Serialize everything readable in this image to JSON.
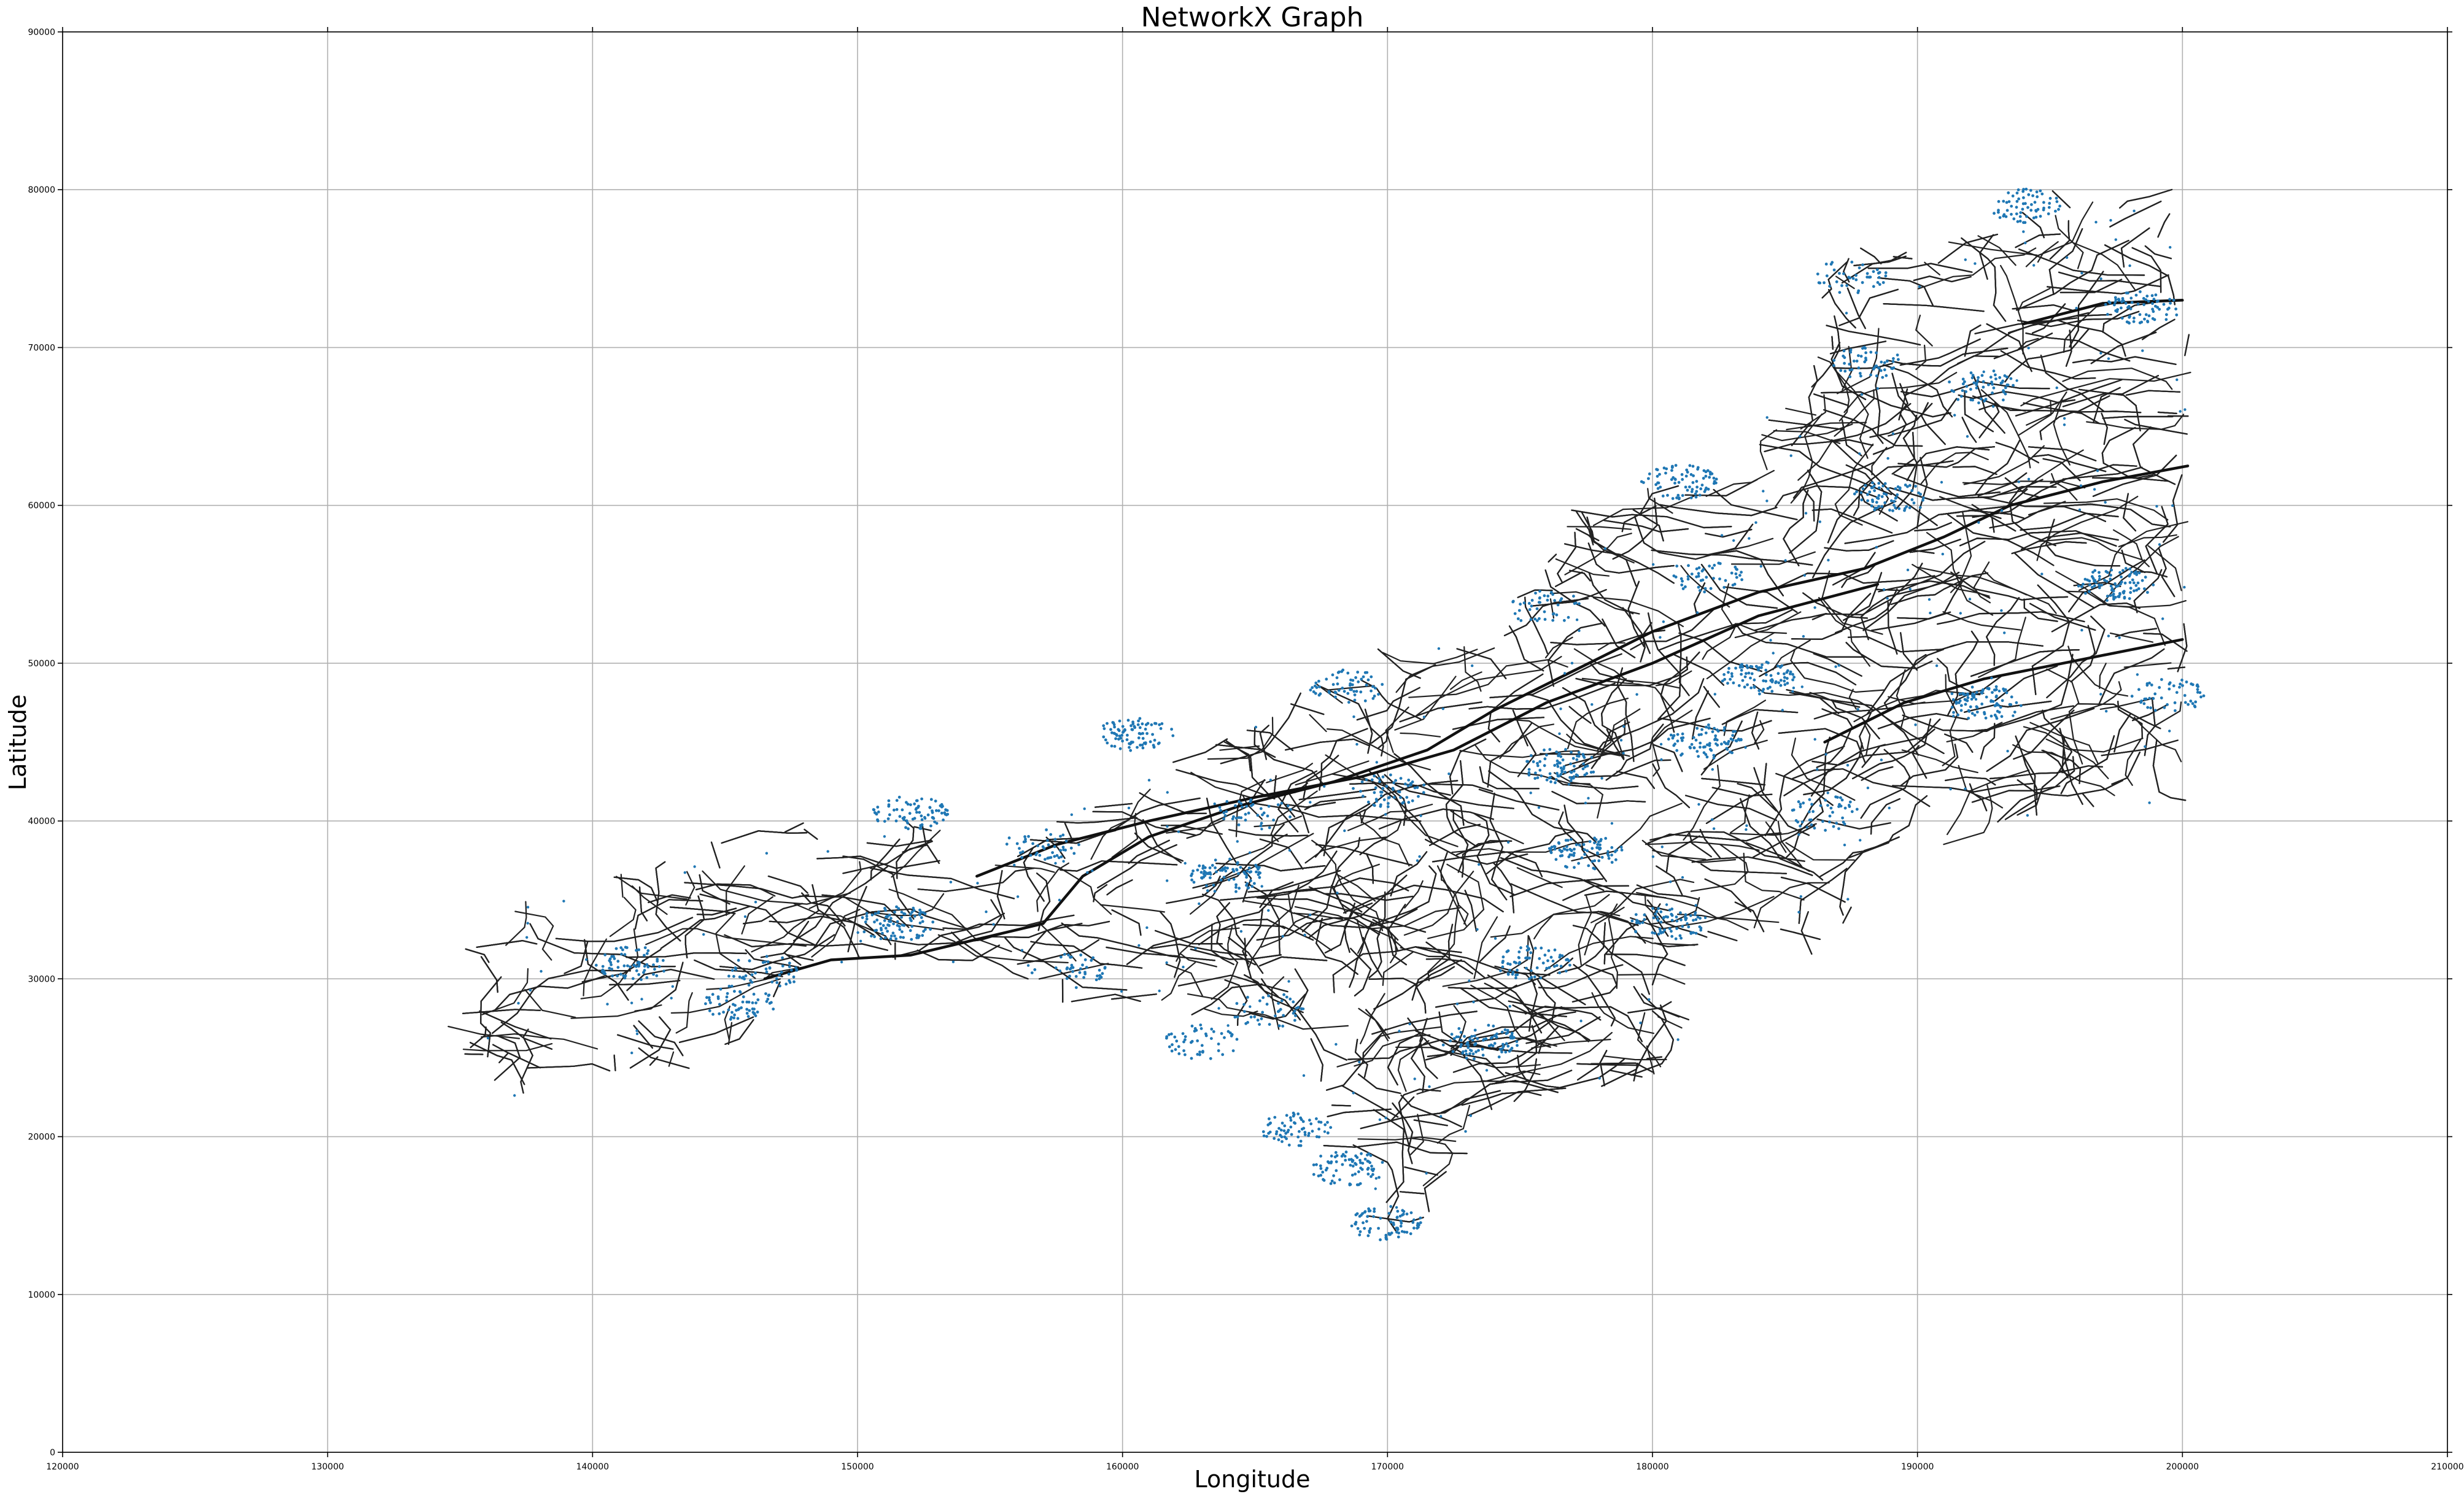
{
  "chart_data": {
    "type": "scatter",
    "title": "NetworkX Graph",
    "xlabel": "Longitude",
    "ylabel": "Latitude",
    "xlim": [
      120000,
      210000
    ],
    "ylim": [
      0,
      90000
    ],
    "xticks": [
      120000,
      130000,
      140000,
      150000,
      160000,
      170000,
      180000,
      190000,
      200000,
      210000
    ],
    "yticks": [
      0,
      10000,
      20000,
      30000,
      40000,
      50000,
      60000,
      70000,
      80000,
      90000
    ],
    "grid": true,
    "legend": "none",
    "edge_color": "#222222",
    "node_color": "#1f77b4",
    "outline": [
      [
        134500,
        25200
      ],
      [
        136000,
        24000
      ],
      [
        137500,
        21800
      ],
      [
        139000,
        23200
      ],
      [
        141000,
        23900
      ],
      [
        143500,
        24200
      ],
      [
        145500,
        25200
      ],
      [
        146500,
        27500
      ],
      [
        147500,
        30500
      ],
      [
        150000,
        31200
      ],
      [
        153000,
        31000
      ],
      [
        155500,
        30500
      ],
      [
        157500,
        28500
      ],
      [
        160000,
        28500
      ],
      [
        162000,
        27800
      ],
      [
        163500,
        26000
      ],
      [
        165000,
        27500
      ],
      [
        166500,
        26000
      ],
      [
        167000,
        22500
      ],
      [
        167500,
        18000
      ],
      [
        169000,
        14500
      ],
      [
        170000,
        12000
      ],
      [
        171500,
        14500
      ],
      [
        172500,
        17500
      ],
      [
        174000,
        21500
      ],
      [
        177000,
        22800
      ],
      [
        179500,
        22800
      ],
      [
        180500,
        24500
      ],
      [
        181500,
        27500
      ],
      [
        182500,
        32000
      ],
      [
        184500,
        33000
      ],
      [
        186000,
        31500
      ],
      [
        187500,
        34000
      ],
      [
        188500,
        37000
      ],
      [
        192000,
        39000
      ],
      [
        195500,
        40500
      ],
      [
        198000,
        41000
      ],
      [
        200200,
        40000
      ],
      [
        200200,
        60000
      ],
      [
        200500,
        66000
      ],
      [
        200200,
        72000
      ],
      [
        199800,
        77000
      ],
      [
        200000,
        81000
      ],
      [
        197500,
        80500
      ],
      [
        195000,
        80000
      ],
      [
        193500,
        78000
      ],
      [
        191500,
        77500
      ],
      [
        189500,
        76000
      ],
      [
        187000,
        76500
      ],
      [
        185500,
        73500
      ],
      [
        186000,
        68500
      ],
      [
        184500,
        66000
      ],
      [
        183000,
        62500
      ],
      [
        181000,
        61500
      ],
      [
        178500,
        61000
      ],
      [
        176500,
        59500
      ],
      [
        175500,
        55000
      ],
      [
        173000,
        53000
      ],
      [
        170000,
        51500
      ],
      [
        167500,
        49000
      ],
      [
        164500,
        46000
      ],
      [
        161000,
        43000
      ],
      [
        157500,
        40000
      ],
      [
        155000,
        38000
      ],
      [
        152500,
        40500
      ],
      [
        150000,
        39500
      ],
      [
        147500,
        40000
      ],
      [
        145000,
        39000
      ],
      [
        142000,
        37500
      ],
      [
        139000,
        35500
      ],
      [
        136500,
        34500
      ],
      [
        135000,
        31500
      ],
      [
        136000,
        29500
      ],
      [
        134500,
        27000
      ]
    ],
    "trunk_roads": [
      [
        [
          146500,
          30000
        ],
        [
          149000,
          31200
        ],
        [
          152000,
          31500
        ],
        [
          154500,
          32500
        ],
        [
          157000,
          33500
        ],
        [
          158500,
          36500
        ],
        [
          161000,
          39000
        ],
        [
          164500,
          41000
        ],
        [
          168000,
          42500
        ],
        [
          171500,
          44500
        ],
        [
          174000,
          47000
        ],
        [
          177000,
          49500
        ],
        [
          180000,
          52000
        ],
        [
          184000,
          54500
        ],
        [
          188000,
          56000
        ],
        [
          191000,
          58000
        ],
        [
          193500,
          60000
        ],
        [
          197000,
          61500
        ],
        [
          200200,
          62500
        ]
      ],
      [
        [
          154500,
          36500
        ],
        [
          157500,
          38500
        ],
        [
          161000,
          40000
        ],
        [
          165000,
          41500
        ],
        [
          169000,
          42800
        ],
        [
          172500,
          44500
        ],
        [
          176000,
          47500
        ],
        [
          180000,
          50000
        ],
        [
          184000,
          53000
        ],
        [
          188500,
          55000
        ]
      ],
      [
        [
          194000,
          71500
        ],
        [
          197000,
          72800
        ],
        [
          200000,
          73000
        ]
      ],
      [
        [
          186500,
          45000
        ],
        [
          189500,
          47500
        ],
        [
          192500,
          49000
        ],
        [
          195500,
          50000
        ],
        [
          200000,
          51500
        ]
      ]
    ],
    "node_clusters": [
      [
        141500,
        31000
      ],
      [
        146500,
        30500
      ],
      [
        145500,
        28500
      ],
      [
        152000,
        40500
      ],
      [
        157000,
        38500
      ],
      [
        165000,
        40500
      ],
      [
        170000,
        42000
      ],
      [
        176500,
        43500
      ],
      [
        182000,
        45000
      ],
      [
        180500,
        33500
      ],
      [
        181000,
        61500
      ],
      [
        168500,
        48500
      ],
      [
        164000,
        36500
      ],
      [
        165500,
        28000
      ],
      [
        163000,
        26000
      ],
      [
        176000,
        53500
      ],
      [
        189000,
        60500
      ],
      [
        194000,
        79000
      ],
      [
        198500,
        72500
      ],
      [
        187500,
        74500
      ],
      [
        197500,
        55000
      ],
      [
        192500,
        47500
      ],
      [
        170000,
        14500
      ],
      [
        168500,
        18000
      ],
      [
        166500,
        20500
      ],
      [
        173500,
        26000
      ],
      [
        177500,
        38000
      ],
      [
        186500,
        40500
      ],
      [
        175500,
        31000
      ],
      [
        158000,
        30500
      ],
      [
        151500,
        33500
      ],
      [
        184000,
        49000
      ],
      [
        199500,
        48000
      ],
      [
        192500,
        67500
      ],
      [
        188000,
        69000
      ],
      [
        182000,
        55500
      ],
      [
        160500,
        45500
      ]
    ]
  }
}
